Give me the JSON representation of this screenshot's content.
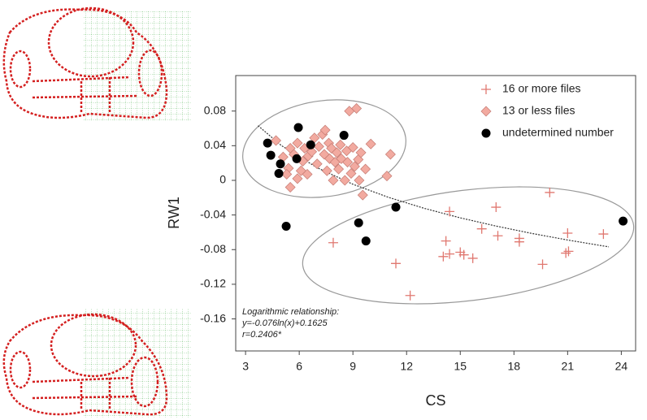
{
  "chart_data": {
    "type": "scatter",
    "x_label": "CS",
    "y_label": "RW1",
    "xlim": [
      2.45,
      24.8
    ],
    "ylim": [
      -0.197,
      0.121
    ],
    "xticks": [
      3,
      6,
      9,
      12,
      15,
      18,
      21,
      24
    ],
    "yticks": [
      0.08,
      0.04,
      0,
      -0.04,
      -0.08,
      -0.12,
      -0.16
    ],
    "annotation": [
      "Logarithmic relationship:",
      "y=-0.076ln(x)+0.1625",
      "r=0.2406*"
    ],
    "series": [
      {
        "name": "16 or more files",
        "marker": "cross",
        "color": "#e07870",
        "x": [
          7.9,
          11.4,
          12.2,
          14.4,
          14.2,
          14.05,
          14.4,
          15.0,
          15.2,
          15.7,
          16.2,
          17.0,
          17.1,
          18.3,
          18.3,
          19.6,
          20.0,
          20.9,
          21.0,
          21.05,
          23.0
        ],
        "values": [
          -0.072,
          -0.096,
          -0.133,
          -0.036,
          -0.07,
          -0.088,
          -0.085,
          -0.083,
          -0.086,
          -0.09,
          -0.056,
          -0.031,
          -0.064,
          -0.067,
          -0.071,
          -0.097,
          -0.014,
          -0.084,
          -0.061,
          -0.082,
          -0.062
        ]
      },
      {
        "name": "13 or less files",
        "marker": "diamond",
        "color": "#f2aaa0",
        "x": [
          4.7,
          5.1,
          5.4,
          5.5,
          5.7,
          5.9,
          6.1,
          6.2,
          6.3,
          6.45,
          6.5,
          6.7,
          6.85,
          7.0,
          7.1,
          7.3,
          7.4,
          7.45,
          7.55,
          7.65,
          7.7,
          7.8,
          7.9,
          8.0,
          8.1,
          8.2,
          8.3,
          8.35,
          8.55,
          8.65,
          8.7,
          8.8,
          8.9,
          9.0,
          9.1,
          9.2,
          9.3,
          9.35,
          9.45,
          9.55,
          9.7,
          10.0,
          10.9,
          11.1,
          5.3,
          5.5,
          5.9
        ],
        "values": [
          0.046,
          0.027,
          0.014,
          0.037,
          0.03,
          0.043,
          0.011,
          0.022,
          0.037,
          0.007,
          0.028,
          0.033,
          0.049,
          0.019,
          0.039,
          0.053,
          0.03,
          0.058,
          0.011,
          0.043,
          0.025,
          0.037,
          0.0,
          0.021,
          0.032,
          0.013,
          0.041,
          0.025,
          0.0,
          0.034,
          0.021,
          0.08,
          0.008,
          0.038,
          0.016,
          0.083,
          0.024,
          0.0,
          0.032,
          -0.017,
          0.013,
          0.042,
          0.005,
          0.03,
          0.007,
          -0.008,
          0.002
        ]
      },
      {
        "name": "undetermined number",
        "marker": "circle",
        "color": "#000000",
        "x": [
          4.23,
          4.41,
          4.95,
          4.86,
          5.95,
          6.64,
          5.86,
          8.5,
          5.27,
          9.32,
          9.73,
          11.4,
          24.1
        ],
        "values": [
          0.043,
          0.029,
          0.019,
          0.008,
          0.061,
          0.041,
          0.025,
          0.052,
          -0.053,
          -0.049,
          -0.07,
          -0.031,
          -0.047
        ]
      }
    ],
    "trendline": {
      "x": [
        3.7,
        5,
        7,
        9,
        11,
        13,
        15,
        17,
        19,
        21,
        23.3
      ],
      "values": [
        0.0631,
        0.0402,
        0.0146,
        -0.0045,
        -0.0197,
        -0.0324,
        -0.0433,
        -0.0528,
        -0.0613,
        -0.0689,
        -0.0768
      ]
    }
  }
}
